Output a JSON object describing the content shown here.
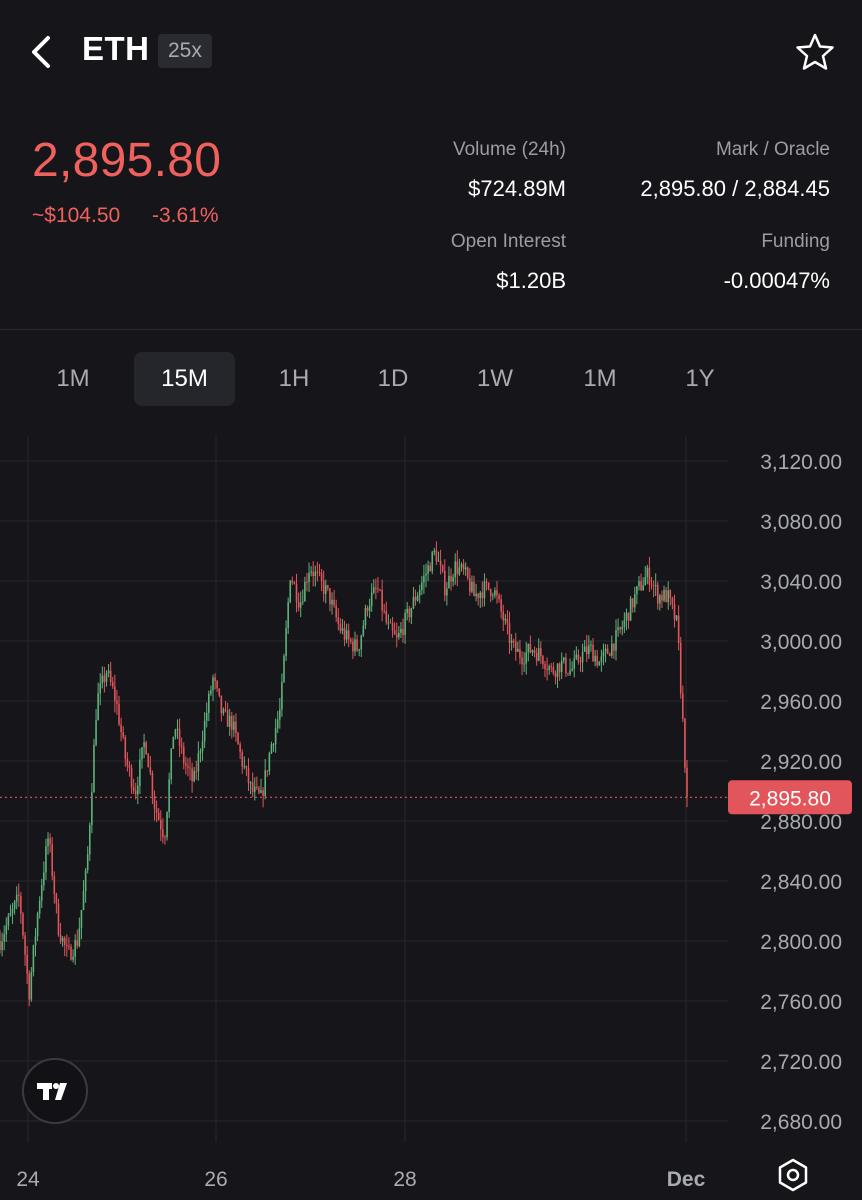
{
  "header": {
    "symbol": "ETH",
    "leverage": "25x",
    "back_icon": "chevron-left-icon",
    "favorite_icon": "star-outline-icon"
  },
  "ticker": {
    "price": "2,895.80",
    "change_abs": "~$104.50",
    "change_pct": "-3.61%",
    "price_color": "#f0615e"
  },
  "stats": {
    "volume_label": "Volume (24h)",
    "volume_value": "$724.89M",
    "mark_label": "Mark / Oracle",
    "mark_value": "2,895.80 / 2,884.45",
    "oi_label": "Open Interest",
    "oi_value": "$1.20B",
    "funding_label": "Funding",
    "funding_value": "-0.00047%"
  },
  "timeframes": [
    {
      "label": "1M",
      "active": false
    },
    {
      "label": "15M",
      "active": true
    },
    {
      "label": "1H",
      "active": false
    },
    {
      "label": "1D",
      "active": false
    },
    {
      "label": "1W",
      "active": false
    },
    {
      "label": "1M",
      "active": false
    },
    {
      "label": "1Y",
      "active": false
    }
  ],
  "chart_data": {
    "type": "candlestick",
    "x_ticks": [
      "24",
      "26",
      "28",
      "Dec"
    ],
    "y_ticks": [
      "3,120.00",
      "3,080.00",
      "3,040.00",
      "3,000.00",
      "2,960.00",
      "2,920.00",
      "2,880.00",
      "2,840.00",
      "2,800.00",
      "2,760.00",
      "2,720.00",
      "2,680.00"
    ],
    "ylim": [
      2660,
      3140
    ],
    "current_price": 2895.8,
    "current_price_label": "2,895.80",
    "up_color": "#5fb37a",
    "down_color": "#e2555a",
    "key_points": [
      [
        0,
        2800
      ],
      [
        2,
        2830
      ],
      [
        3,
        2765
      ],
      [
        4,
        2825
      ],
      [
        5,
        2870
      ],
      [
        6,
        2810
      ],
      [
        7,
        2790
      ],
      [
        8,
        2800
      ],
      [
        9,
        2850
      ],
      [
        10,
        2960
      ],
      [
        11,
        2980
      ],
      [
        12,
        2960
      ],
      [
        13,
        2920
      ],
      [
        14,
        2900
      ],
      [
        15,
        2935
      ],
      [
        16,
        2890
      ],
      [
        17,
        2870
      ],
      [
        18,
        2945
      ],
      [
        19,
        2920
      ],
      [
        20,
        2905
      ],
      [
        22,
        2975
      ],
      [
        23,
        2950
      ],
      [
        24,
        2945
      ],
      [
        25,
        2920
      ],
      [
        26,
        2900
      ],
      [
        27,
        2895
      ],
      [
        28,
        2930
      ],
      [
        29,
        2955
      ],
      [
        30,
        3045
      ],
      [
        31,
        3025
      ],
      [
        32,
        3050
      ],
      [
        33,
        3040
      ],
      [
        34,
        3030
      ],
      [
        35,
        3010
      ],
      [
        36,
        3000
      ],
      [
        37,
        2995
      ],
      [
        38,
        3025
      ],
      [
        39,
        3035
      ],
      [
        40,
        3010
      ],
      [
        41,
        3000
      ],
      [
        42,
        3015
      ],
      [
        43,
        3030
      ],
      [
        44,
        3045
      ],
      [
        45,
        3060
      ],
      [
        46,
        3035
      ],
      [
        47,
        3050
      ],
      [
        48,
        3045
      ],
      [
        49,
        3030
      ],
      [
        50,
        3035
      ],
      [
        51,
        3035
      ],
      [
        52,
        3015
      ],
      [
        53,
        2995
      ],
      [
        54,
        2990
      ],
      [
        55,
        2995
      ],
      [
        56,
        2990
      ],
      [
        57,
        2980
      ],
      [
        58,
        2985
      ],
      [
        59,
        2980
      ],
      [
        60,
        2990
      ],
      [
        61,
        2995
      ],
      [
        62,
        2985
      ],
      [
        63,
        2995
      ],
      [
        64,
        3005
      ],
      [
        65,
        3020
      ],
      [
        66,
        3035
      ],
      [
        67,
        3045
      ],
      [
        68,
        3030
      ],
      [
        69,
        3030
      ],
      [
        70,
        3010
      ],
      [
        71,
        2895.8
      ]
    ]
  },
  "footer": {
    "tradingview_logo": "tradingview-logo-icon",
    "settings_icon": "hexagon-gear-icon"
  }
}
